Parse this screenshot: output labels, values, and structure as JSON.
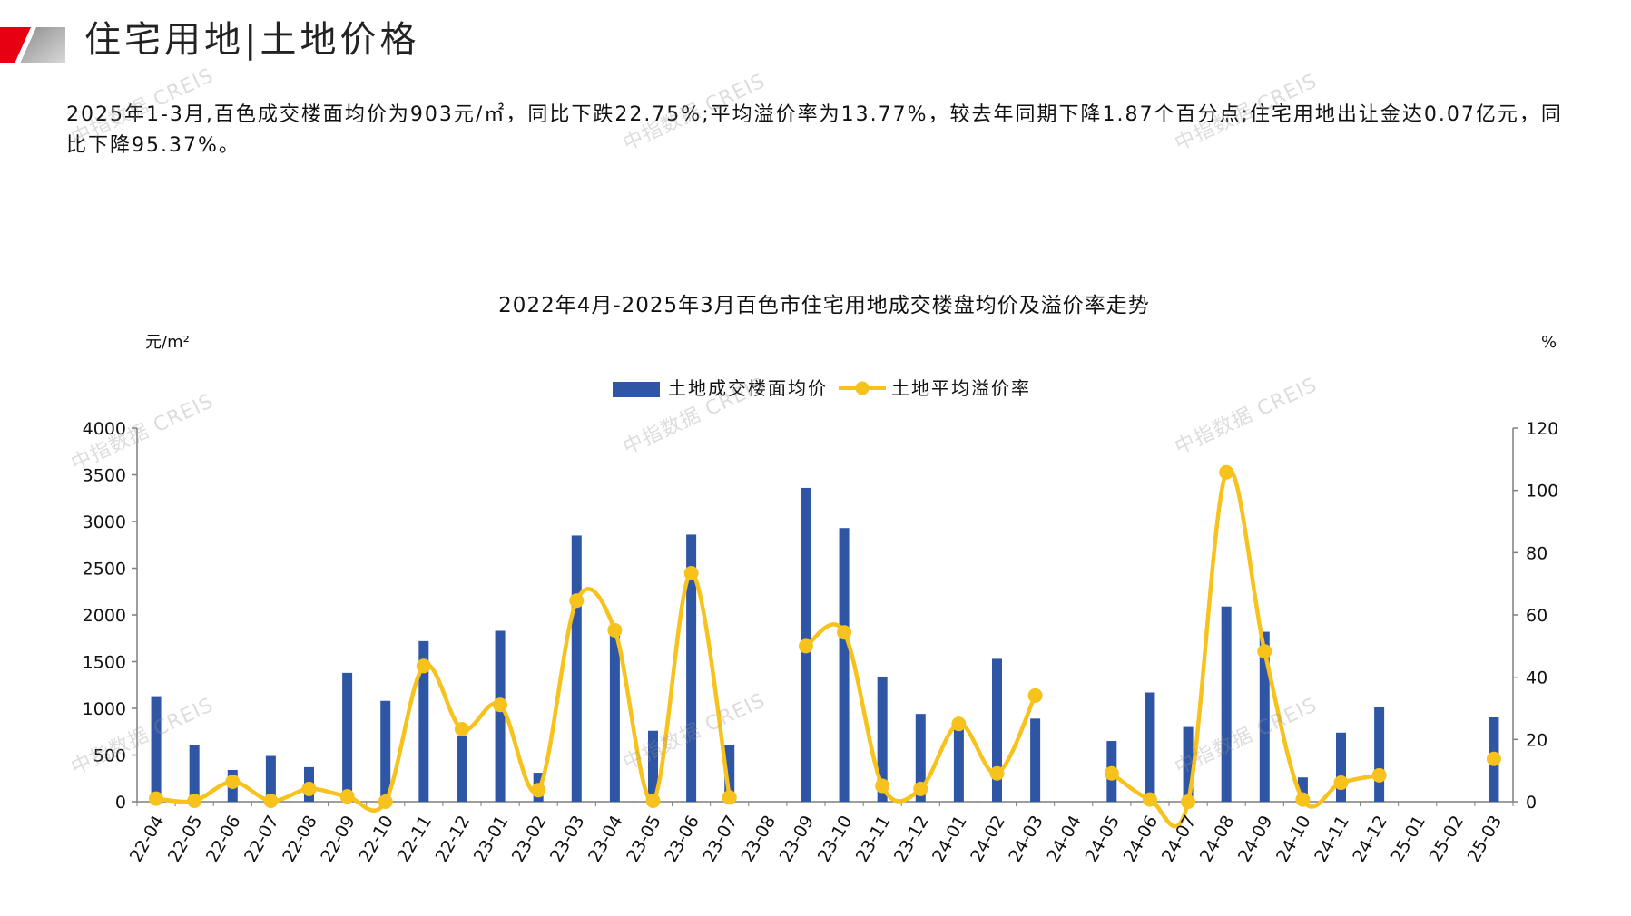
{
  "header": {
    "title": "住宅用地|土地价格"
  },
  "summary": "2025年1-3月,百色成交楼面均价为903元/㎡，同比下跌22.75%;平均溢价率为13.77%，较去年同期下降1.87个百分点;住宅用地出让金达0.07亿元，同比下降95.37%。",
  "watermark": {
    "text": "中指数据 CREIS"
  },
  "colors": {
    "accent_red": "#E60012",
    "bar": "#2F55A5",
    "line": "#F8C21C",
    "axis": "#7F7F7F"
  },
  "chart_data": {
    "type": "bar",
    "title": "2022年4月-2025年3月百色市住宅用地成交楼盘均价及溢价率走势",
    "categories": [
      "22-04",
      "22-05",
      "22-06",
      "22-07",
      "22-08",
      "22-09",
      "22-10",
      "22-11",
      "22-12",
      "23-01",
      "23-02",
      "23-03",
      "23-04",
      "23-05",
      "23-06",
      "23-07",
      "23-08",
      "23-09",
      "23-10",
      "23-11",
      "23-12",
      "24-01",
      "24-02",
      "24-03",
      "24-04",
      "24-05",
      "24-06",
      "24-07",
      "24-08",
      "24-09",
      "24-10",
      "24-11",
      "24-12",
      "25-01",
      "25-02",
      "25-03"
    ],
    "series": [
      {
        "name": "土地成交楼面均价",
        "type": "bar",
        "axis": "left",
        "values": [
          1130,
          610,
          340,
          490,
          370,
          1380,
          1080,
          1720,
          700,
          1830,
          310,
          2850,
          1840,
          760,
          2860,
          610,
          null,
          3360,
          2930,
          1340,
          940,
          790,
          1530,
          890,
          null,
          650,
          1170,
          800,
          2090,
          1820,
          260,
          740,
          1010,
          null,
          null,
          903
        ]
      },
      {
        "name": "土地平均溢价率",
        "type": "line",
        "axis": "right",
        "smooth": true,
        "values": [
          1.0,
          0.3,
          6.4,
          0.3,
          4.1,
          1.7,
          0.0,
          43.6,
          23.3,
          31.1,
          3.7,
          64.6,
          55.1,
          0.3,
          73.4,
          1.4,
          null,
          50.0,
          54.4,
          5.1,
          4.1,
          25.0,
          9.1,
          34.1,
          null,
          9.1,
          0.7,
          0.0,
          105.8,
          48.3,
          0.7,
          6.1,
          8.5,
          null,
          null,
          13.77
        ]
      }
    ],
    "y_left": {
      "unit": "元/m²",
      "range": [
        0,
        4000
      ],
      "ticks": [
        0,
        500,
        1000,
        1500,
        2000,
        2500,
        3000,
        3500,
        4000
      ]
    },
    "y_right": {
      "unit": "%",
      "range": [
        0,
        120
      ],
      "ticks": [
        0,
        20,
        40,
        60,
        80,
        100,
        120
      ]
    },
    "legend": "top",
    "grid": false
  }
}
